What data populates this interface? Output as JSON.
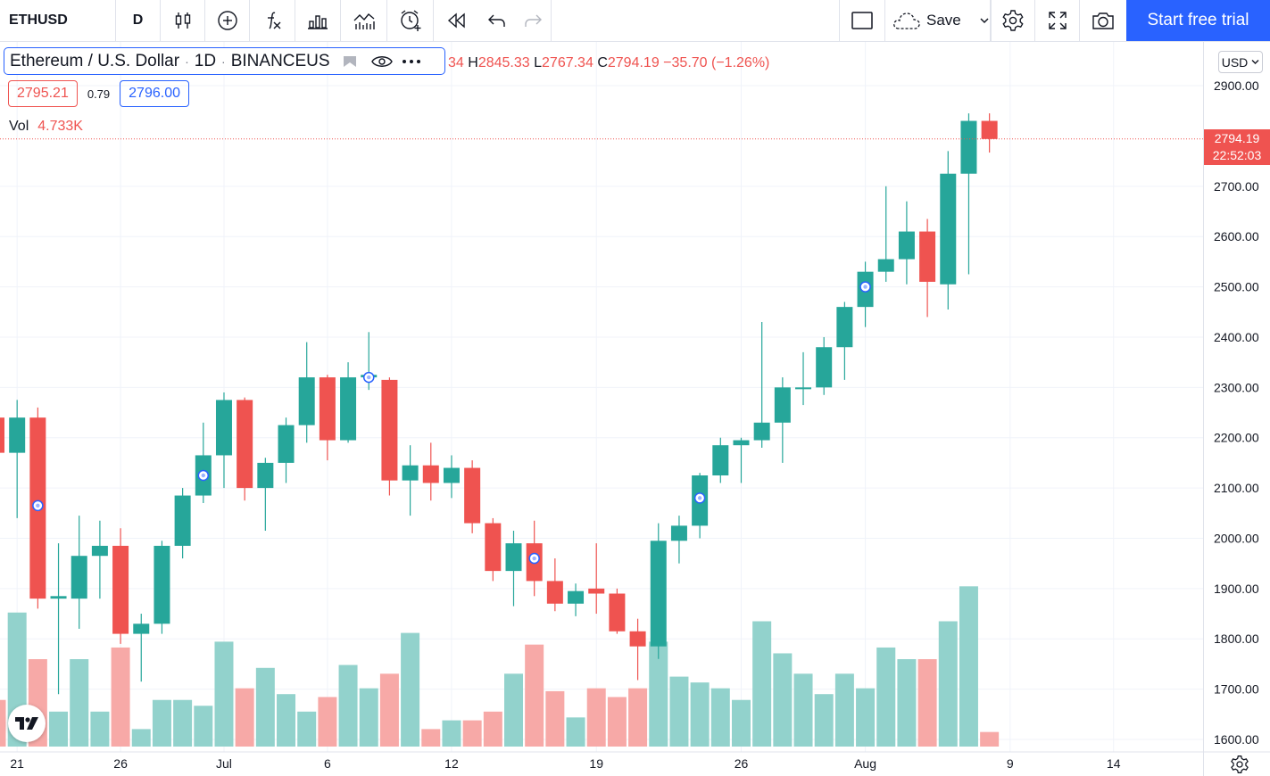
{
  "toolbar": {
    "symbol": "ETHUSD",
    "interval": "D",
    "save_label": "Save",
    "trial_label": "Start free trial",
    "icons": [
      "candles-icon",
      "compare-plus-icon",
      "fx-indicator-icon",
      "bar-layout-icon",
      "indicators-icon",
      "alert-icon",
      "replay-icon",
      "undo-icon",
      "redo-icon",
      "rectangle-icon",
      "cloud-save-icon",
      "chevron-down-icon",
      "settings-gear-icon",
      "fullscreen-icon",
      "camera-icon"
    ]
  },
  "legend": {
    "title": "Ethereum / U.S. Dollar",
    "interval": "1D",
    "exchange": "BINANCEUS",
    "ohlc_cut": "34",
    "h_key": "H",
    "h_val": "2845.33",
    "l_key": "L",
    "l_val": "2767.34",
    "c_key": "C",
    "c_val": "2794.19",
    "change": "−35.70 (−1.26%)",
    "bid": "2795.21",
    "spread": "0.79",
    "ask": "2796.00",
    "vol_label": "Vol",
    "vol_value": "4.733K"
  },
  "scale": {
    "currency": "USD",
    "last_price": "2794.19",
    "countdown": "22:52:03"
  },
  "colors": {
    "up": "#26a69a",
    "down": "#ef5350",
    "up_volume": "#92d2cc",
    "down_volume": "#f7a9a7",
    "accent": "#2962ff"
  },
  "chart_data": {
    "type": "candlestick",
    "symbol": "ETHUSD",
    "interval": "1D",
    "y_ticks": [
      1600,
      1700,
      1800,
      1900,
      2000,
      2100,
      2200,
      2300,
      2400,
      2500,
      2600,
      2700,
      2900
    ],
    "y_tick_labels": [
      "1600.00",
      "1700.00",
      "1800.00",
      "1900.00",
      "2000.00",
      "2100.00",
      "2200.00",
      "2300.00",
      "2400.00",
      "2500.00",
      "2600.00",
      "2700.00",
      "2900.00"
    ],
    "ylim": [
      1595,
      2948
    ],
    "x_labels": [
      {
        "i": 1,
        "label": "21"
      },
      {
        "i": 6,
        "label": "26"
      },
      {
        "i": 11,
        "label": "Jul"
      },
      {
        "i": 16,
        "label": "6"
      },
      {
        "i": 22,
        "label": "12"
      },
      {
        "i": 29,
        "label": "19"
      },
      {
        "i": 36,
        "label": "26"
      },
      {
        "i": 42,
        "label": "Aug"
      },
      {
        "i": 49,
        "label": "9"
      },
      {
        "i": 54,
        "label": "14"
      }
    ],
    "candles": [
      {
        "o": 2240,
        "h": 2290,
        "l": 2160,
        "c": 2170
      },
      {
        "o": 2170,
        "h": 2275,
        "l": 2040,
        "c": 2240
      },
      {
        "o": 2240,
        "h": 2260,
        "l": 1860,
        "c": 1880
      },
      {
        "o": 1880,
        "h": 1990,
        "l": 1690,
        "c": 1885
      },
      {
        "o": 1880,
        "h": 2045,
        "l": 1820,
        "c": 1965
      },
      {
        "o": 1965,
        "h": 2035,
        "l": 1880,
        "c": 1985
      },
      {
        "o": 1985,
        "h": 2020,
        "l": 1790,
        "c": 1810
      },
      {
        "o": 1810,
        "h": 1850,
        "l": 1715,
        "c": 1830
      },
      {
        "o": 1830,
        "h": 1995,
        "l": 1810,
        "c": 1985
      },
      {
        "o": 1985,
        "h": 2100,
        "l": 1960,
        "c": 2085
      },
      {
        "o": 2085,
        "h": 2230,
        "l": 2070,
        "c": 2165
      },
      {
        "o": 2165,
        "h": 2290,
        "l": 2100,
        "c": 2275
      },
      {
        "o": 2275,
        "h": 2280,
        "l": 2075,
        "c": 2100
      },
      {
        "o": 2100,
        "h": 2160,
        "l": 2015,
        "c": 2150
      },
      {
        "o": 2150,
        "h": 2240,
        "l": 2110,
        "c": 2225
      },
      {
        "o": 2225,
        "h": 2390,
        "l": 2190,
        "c": 2320
      },
      {
        "o": 2320,
        "h": 2325,
        "l": 2155,
        "c": 2195
      },
      {
        "o": 2195,
        "h": 2350,
        "l": 2190,
        "c": 2320
      },
      {
        "o": 2320,
        "h": 2410,
        "l": 2295,
        "c": 2325
      },
      {
        "o": 2315,
        "h": 2320,
        "l": 2085,
        "c": 2115
      },
      {
        "o": 2115,
        "h": 2185,
        "l": 2045,
        "c": 2145
      },
      {
        "o": 2145,
        "h": 2190,
        "l": 2075,
        "c": 2110
      },
      {
        "o": 2110,
        "h": 2165,
        "l": 2080,
        "c": 2140
      },
      {
        "o": 2140,
        "h": 2155,
        "l": 2010,
        "c": 2030
      },
      {
        "o": 2030,
        "h": 2040,
        "l": 1915,
        "c": 1935
      },
      {
        "o": 1935,
        "h": 2015,
        "l": 1865,
        "c": 1990
      },
      {
        "o": 1990,
        "h": 2035,
        "l": 1885,
        "c": 1915
      },
      {
        "o": 1915,
        "h": 1960,
        "l": 1855,
        "c": 1870
      },
      {
        "o": 1870,
        "h": 1910,
        "l": 1845,
        "c": 1895
      },
      {
        "o": 1900,
        "h": 1990,
        "l": 1850,
        "c": 1890
      },
      {
        "o": 1890,
        "h": 1900,
        "l": 1810,
        "c": 1815
      },
      {
        "o": 1815,
        "h": 1840,
        "l": 1718,
        "c": 1785
      },
      {
        "o": 1785,
        "h": 2030,
        "l": 1760,
        "c": 1995
      },
      {
        "o": 1995,
        "h": 2045,
        "l": 1950,
        "c": 2025
      },
      {
        "o": 2025,
        "h": 2130,
        "l": 2000,
        "c": 2125
      },
      {
        "o": 2125,
        "h": 2200,
        "l": 2110,
        "c": 2185
      },
      {
        "o": 2185,
        "h": 2200,
        "l": 2110,
        "c": 2195
      },
      {
        "o": 2195,
        "h": 2430,
        "l": 2180,
        "c": 2230
      },
      {
        "o": 2230,
        "h": 2320,
        "l": 2150,
        "c": 2300
      },
      {
        "o": 2300,
        "h": 2370,
        "l": 2265,
        "c": 2300
      },
      {
        "o": 2300,
        "h": 2400,
        "l": 2285,
        "c": 2380
      },
      {
        "o": 2380,
        "h": 2470,
        "l": 2315,
        "c": 2460
      },
      {
        "o": 2460,
        "h": 2550,
        "l": 2420,
        "c": 2530
      },
      {
        "o": 2530,
        "h": 2700,
        "l": 2510,
        "c": 2555
      },
      {
        "o": 2555,
        "h": 2670,
        "l": 2505,
        "c": 2610
      },
      {
        "o": 2610,
        "h": 2635,
        "l": 2440,
        "c": 2510
      },
      {
        "o": 2505,
        "h": 2770,
        "l": 2455,
        "c": 2725
      },
      {
        "o": 2725,
        "h": 2845,
        "l": 2525,
        "c": 2830
      },
      {
        "o": 2830,
        "h": 2845,
        "l": 2767,
        "c": 2794
      }
    ],
    "volume": [
      1.6,
      4.6,
      3.0,
      1.2,
      3.0,
      1.2,
      3.4,
      0.6,
      1.6,
      1.6,
      1.4,
      3.6,
      2.0,
      2.7,
      1.8,
      1.2,
      1.7,
      2.8,
      2.0,
      2.5,
      3.9,
      0.6,
      0.9,
      0.9,
      1.2,
      2.5,
      3.5,
      1.9,
      1.0,
      2.0,
      1.7,
      2.0,
      3.6,
      2.4,
      2.2,
      2.0,
      1.6,
      4.3,
      3.2,
      2.5,
      1.8,
      2.5,
      2.0,
      3.4,
      3.0,
      3.0,
      4.3,
      5.5,
      0.5
    ],
    "volume_max": 6.0,
    "markers": [
      {
        "i": 2,
        "price": 2065
      },
      {
        "i": 10,
        "price": 2125
      },
      {
        "i": 18,
        "price": 2320
      },
      {
        "i": 26,
        "price": 1960
      },
      {
        "i": 34,
        "price": 2080
      },
      {
        "i": 42,
        "price": 2500
      }
    ],
    "last_price": 2794.19
  }
}
